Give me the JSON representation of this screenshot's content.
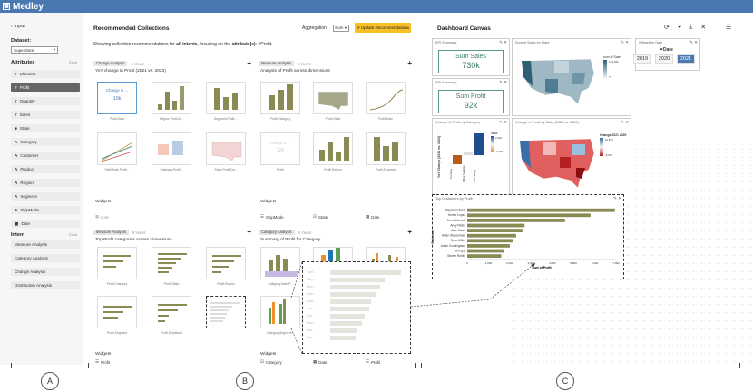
{
  "app": {
    "title": "Medley"
  },
  "sidebar": {
    "back_label": "Input",
    "dataset_label": "Dataset:",
    "dataset_value": "Superstore",
    "attributes_label": "Attributes",
    "clear_label": "Clear",
    "attributes": [
      {
        "prefix": "#",
        "name": "Discount"
      },
      {
        "prefix": "#",
        "name": "Profit"
      },
      {
        "prefix": "#",
        "name": "Quantity"
      },
      {
        "prefix": "#",
        "name": "Sales"
      },
      {
        "prefix": "■",
        "name": "State"
      },
      {
        "prefix": "A",
        "name": "Category"
      },
      {
        "prefix": "A",
        "name": "Customer"
      },
      {
        "prefix": "A",
        "name": "Product"
      },
      {
        "prefix": "A",
        "name": "Region"
      },
      {
        "prefix": "A",
        "name": "Segment"
      },
      {
        "prefix": "A",
        "name": "ShipMode"
      },
      {
        "prefix": "▦",
        "name": "Date"
      }
    ],
    "intent_label": "Intent",
    "intent_clear": "Clear",
    "intents": [
      "Measure Analysis",
      "Category Analysis",
      "Change Analysis",
      "Distribution Analysis"
    ]
  },
  "collections": {
    "title": "Recommended Collections",
    "aggregation_label": "Aggregation",
    "aggregation_value": "Sum",
    "update_button": "Update Recommendations",
    "desc_pre": "Showing collection recommendations for",
    "desc_bold1": "all intents",
    "desc_mid": ", focusing on the",
    "desc_bold2": "attribute(s)",
    "desc_post": ": #Profit.",
    "panels": [
      {
        "tag": "Change Analysis",
        "views": "6 Views",
        "subtitle": "YoY change in Profit (2021 vs. 2020)",
        "thumbs": [
          "Profit,Date",
          "Region,Profit,D...",
          "Segment,Profit,...",
          "ShipMode,Profit...",
          "Category,Profit...",
          "State,Profit,Da..."
        ],
        "kpi_title": "Change in ...",
        "kpi_value": "10k",
        "widgets_label": "Widgets",
        "widgets": [
          "Date"
        ]
      },
      {
        "tag": "Measure Analysis",
        "views": "6 Views",
        "subtitle": "Analysis of Profit across dimensions",
        "thumbs": [
          "Profit,Category",
          "Profit,State",
          "Profit,Date",
          "Profit",
          "Profit,Region",
          "Profit,Segment"
        ],
        "kpi_title": "Sum of Profit",
        "kpi_value": "92k",
        "widgets_label": "Widgets",
        "widgets": [
          "ShipMode",
          "State",
          "Date"
        ]
      },
      {
        "tag": "Measure Analysis",
        "views": "6 Views",
        "subtitle": "Top Profit categories across dimensions",
        "thumbs": [
          "Profit,Category",
          "Profit,State",
          "Profit,Region",
          "Profit,Segment",
          "Profit,ShipMode"
        ],
        "widgets_label": "Widgets",
        "widgets": [
          "Profit"
        ]
      },
      {
        "tag": "Category Analysis",
        "views": "6 Views",
        "subtitle": "Summary of Profit for Category",
        "thumbs": [
          "Category,Date,P...",
          "Category,Segment..."
        ],
        "widgets_label": "Widgets",
        "widgets": [
          "Category",
          "Date",
          "Profit"
        ]
      }
    ],
    "zoom_labels": [
      "Tom...",
      "Ray...",
      "Ben...",
      "Pun...",
      "Ada...",
      "Jan...",
      "Chr...",
      "Hun...",
      "Ela...",
      "Ste..."
    ]
  },
  "dashboard": {
    "title": "Dashboard Canvas",
    "kpi1": {
      "title": "KPI Summary",
      "label": "Sum Sales",
      "value": "730k"
    },
    "kpi2": {
      "title": "KPI Summary",
      "label": "Sum Profit",
      "value": "92k"
    },
    "map1": {
      "title": "Sum of Sales by State",
      "legend": "sum of Sales",
      "legend_max": "143,941",
      "legend_min": "77"
    },
    "widget": {
      "title": "Widget for Date",
      "label": "Date",
      "years": [
        "2019",
        "2020",
        "2021"
      ],
      "selected": "2021"
    },
    "change_card": {
      "title": "Change of Profit by Category",
      "ylabel": "YoY Change (2021 vs. 2020)",
      "xlabel": "Category",
      "categories": [
        "Furniture",
        "Office Supplies",
        "Technology"
      ],
      "legend": "delta",
      "legend_max": "2,644",
      "legend_min": "-2,079"
    },
    "map2": {
      "title": "Change of Profit by State (2021 vs. 2020)",
      "legend": "Change 2021 2020",
      "legend_max": "12,874",
      "legend_min": "-6,970"
    },
    "customers": {
      "title": "Top Customers by Profit",
      "ylabel": "Customer",
      "xlabel": "Sum of Profit",
      "names": [
        "Raymond Buch",
        "Hunter Lopez",
        "Tom Ashbrook",
        "Andy Reiter",
        "Jane Waco",
        "Helen Wasserman",
        "Sean Miller",
        "Adam Cunningham",
        "Jim Epp",
        "Steven Roelle"
      ],
      "ticks": [
        "0",
        "1,000",
        "2,000",
        "3,000",
        "4,000",
        "5,000",
        "6,000",
        "7,000"
      ]
    }
  },
  "chart_data": {
    "type": "bar",
    "title": "Top Customers by Profit",
    "xlabel": "Sum of Profit",
    "ylabel": "Customer",
    "categories": [
      "Raymond Buch",
      "Hunter Lopez",
      "Tom Ashbrook",
      "Andy Reiter",
      "Jane Waco",
      "Helen Wasserman",
      "Sean Miller",
      "Adam Cunningham",
      "Jim Epp",
      "Steven Roelle"
    ],
    "values": [
      6950,
      5800,
      4600,
      2700,
      2600,
      2300,
      2150,
      2000,
      1750,
      1600
    ],
    "xlim": [
      0,
      7000
    ]
  },
  "labels": {
    "a": "A",
    "b": "B",
    "c": "C"
  }
}
